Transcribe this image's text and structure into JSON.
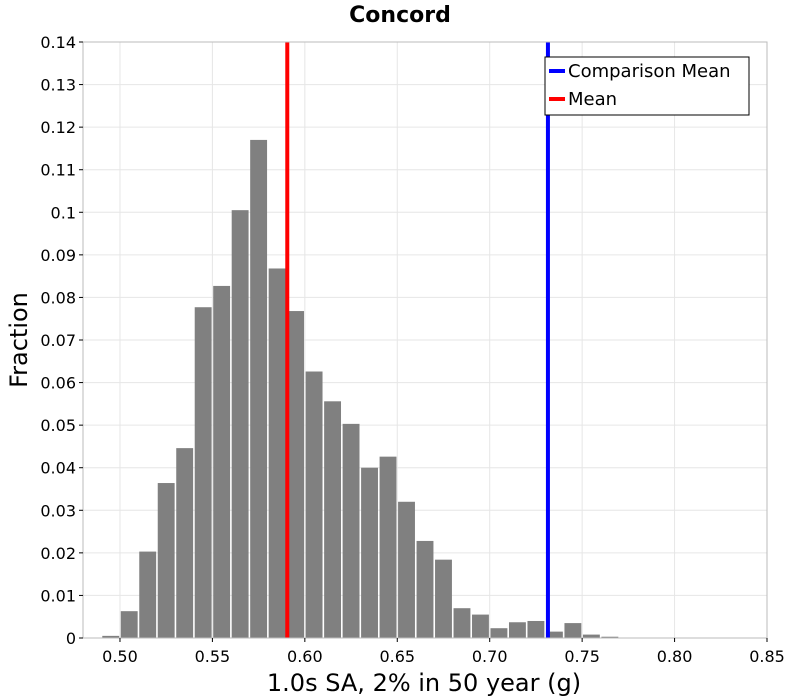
{
  "chart_data": {
    "type": "bar",
    "title": "Concord",
    "xlabel": "1.0s SA, 2% in 50 year (g)",
    "ylabel": "Fraction",
    "xlim": [
      0.48,
      0.85
    ],
    "ylim": [
      0,
      0.14
    ],
    "x_ticks": [
      "0.50",
      "0.55",
      "0.60",
      "0.65",
      "0.70",
      "0.75",
      "0.80",
      "0.85"
    ],
    "y_ticks": [
      "0",
      "0.01",
      "0.02",
      "0.03",
      "0.04",
      "0.05",
      "0.06",
      "0.07",
      "0.08",
      "0.09",
      "0.1",
      "0.11",
      "0.12",
      "0.13",
      "0.14"
    ],
    "grid": true,
    "bin_width": 0.01,
    "bin_starts": [
      0.49,
      0.5,
      0.51,
      0.52,
      0.53,
      0.54,
      0.55,
      0.56,
      0.57,
      0.58,
      0.59,
      0.6,
      0.61,
      0.62,
      0.63,
      0.64,
      0.65,
      0.66,
      0.67,
      0.68,
      0.69,
      0.7,
      0.71,
      0.72,
      0.73,
      0.74,
      0.75,
      0.76
    ],
    "values": [
      0.0005,
      0.0063,
      0.0203,
      0.0364,
      0.0446,
      0.0777,
      0.0827,
      0.1005,
      0.117,
      0.0868,
      0.0768,
      0.0626,
      0.0556,
      0.0503,
      0.04,
      0.0426,
      0.032,
      0.0228,
      0.0184,
      0.007,
      0.0055,
      0.0023,
      0.0037,
      0.004,
      0.0015,
      0.0035,
      0.0008,
      0.0003
    ],
    "bar_color": "#808080",
    "lines": [
      {
        "name": "Comparison Mean",
        "x": 0.7315,
        "color": "#0000ff"
      },
      {
        "name": "Mean",
        "x": 0.5905,
        "color": "#ff0000"
      }
    ],
    "legend_position": "top-right"
  }
}
